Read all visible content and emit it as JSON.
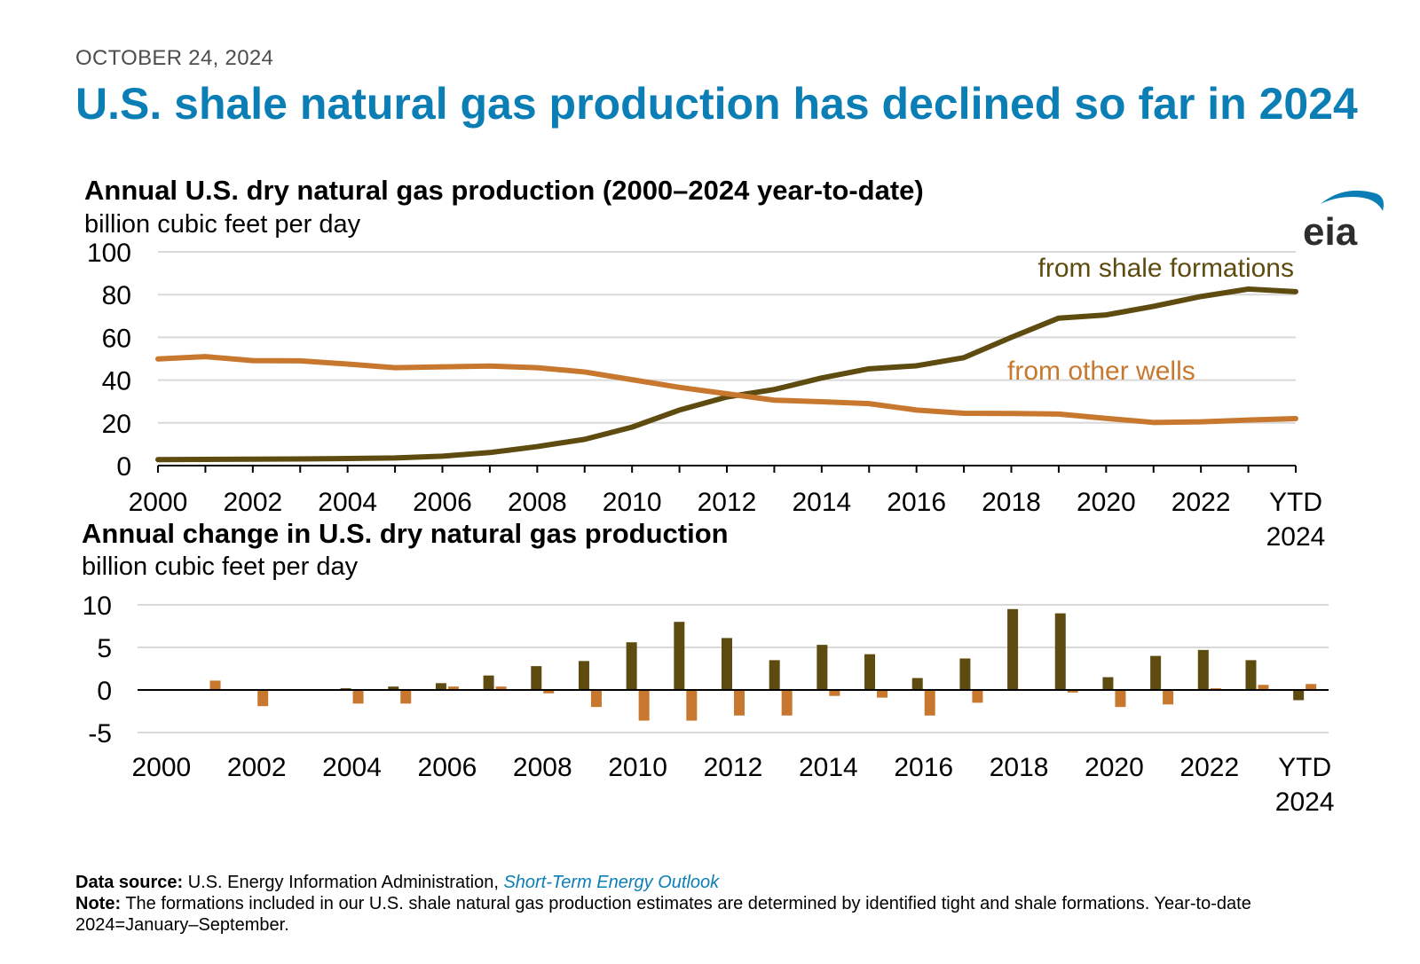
{
  "header": {
    "date": "OCTOBER 24, 2024",
    "headline": "U.S. shale natural gas production has declined so far in 2024"
  },
  "logo": {
    "text": "eia",
    "icon": "eia-logo-icon",
    "color": "#0b7eb5"
  },
  "colors": {
    "shale": "#5e4b10",
    "other": "#c8782e",
    "grid": "#d9d9d9",
    "accent": "#0b7eb5"
  },
  "chart_data": [
    {
      "type": "line",
      "title": "Annual U.S. dry natural gas production (2000–2024 year-to-date)",
      "ylabel": "billion cubic feet per day",
      "ylim": [
        0,
        100
      ],
      "yticks": [
        0,
        20,
        40,
        60,
        80,
        100
      ],
      "x": [
        "2000",
        "2001",
        "2002",
        "2003",
        "2004",
        "2005",
        "2006",
        "2007",
        "2008",
        "2009",
        "2010",
        "2011",
        "2012",
        "2013",
        "2014",
        "2015",
        "2016",
        "2017",
        "2018",
        "2019",
        "2020",
        "2021",
        "2022",
        "2023",
        "YTD 2024"
      ],
      "xtick_labels": [
        "2000",
        "2002",
        "2004",
        "2006",
        "2008",
        "2010",
        "2012",
        "2014",
        "2016",
        "2018",
        "2020",
        "2022",
        "YTD|2024"
      ],
      "series": [
        {
          "name": "from shale formations",
          "color": "#5e4b10",
          "values": [
            2.8,
            2.9,
            3.0,
            3.1,
            3.3,
            3.6,
            4.4,
            6.1,
            8.9,
            12.3,
            18.0,
            26.0,
            32.1,
            35.6,
            41.0,
            45.3,
            46.7,
            50.5,
            60.0,
            69.0,
            70.5,
            74.5,
            79.1,
            82.6,
            81.4
          ]
        },
        {
          "name": "from other wells",
          "color": "#c8782e",
          "values": [
            49.9,
            51.0,
            49.1,
            49.0,
            47.5,
            45.8,
            46.2,
            46.6,
            45.8,
            43.8,
            40.2,
            36.6,
            33.6,
            30.6,
            29.9,
            29.0,
            26.0,
            24.5,
            24.4,
            24.1,
            22.1,
            20.2,
            20.5,
            21.3,
            22.0
          ]
        }
      ]
    },
    {
      "type": "bar",
      "title": "Annual change in U.S. dry natural gas production",
      "ylabel": "billion cubic feet per day",
      "ylim": [
        -5,
        10
      ],
      "yticks": [
        -5,
        0,
        5,
        10
      ],
      "x": [
        "2000",
        "2001",
        "2002",
        "2003",
        "2004",
        "2005",
        "2006",
        "2007",
        "2008",
        "2009",
        "2010",
        "2011",
        "2012",
        "2013",
        "2014",
        "2015",
        "2016",
        "2017",
        "2018",
        "2019",
        "2020",
        "2021",
        "2022",
        "2023",
        "YTD 2024"
      ],
      "xtick_labels": [
        "2000",
        "2002",
        "2004",
        "2006",
        "2008",
        "2010",
        "2012",
        "2014",
        "2016",
        "2018",
        "2020",
        "2022",
        "YTD|2024"
      ],
      "series": [
        {
          "name": "from shale formations",
          "color": "#5e4b10",
          "values": [
            0,
            0,
            0.1,
            0.1,
            0.2,
            0.4,
            0.8,
            1.7,
            2.8,
            3.4,
            5.6,
            8.0,
            6.1,
            3.5,
            5.3,
            4.2,
            1.4,
            3.7,
            9.5,
            9.0,
            1.5,
            4.0,
            4.7,
            3.5,
            -1.2
          ]
        },
        {
          "name": "from other wells",
          "color": "#c8782e",
          "values": [
            0,
            1.1,
            -1.9,
            0.1,
            -1.6,
            -1.6,
            0.4,
            0.4,
            -0.4,
            -2.0,
            -3.6,
            -3.6,
            -3.0,
            -3.0,
            -0.7,
            -0.9,
            -3.0,
            -1.5,
            0,
            -0.3,
            -2.0,
            -1.7,
            0.2,
            0.6,
            0.7
          ]
        }
      ]
    }
  ],
  "footer": {
    "source_label": "Data source:",
    "source_text": "U.S. Energy Information Administration,",
    "source_link": "Short-Term Energy Outlook",
    "note_label": "Note:",
    "note_text": "The formations included in our U.S. shale natural gas production estimates are determined by identified tight and shale formations. Year-to-date 2024=January–September."
  }
}
